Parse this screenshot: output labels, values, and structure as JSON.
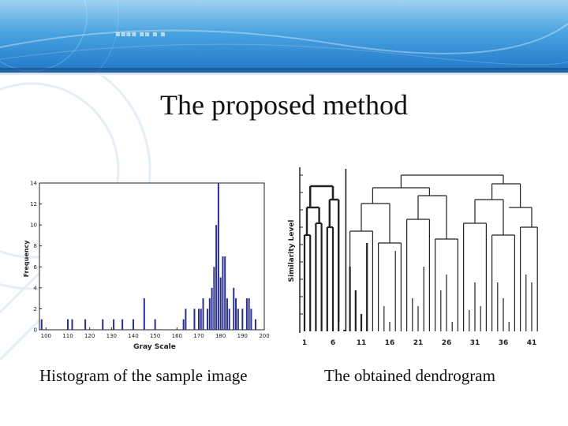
{
  "slide": {
    "title": "The proposed method",
    "caption_left": "Histogram of the sample image",
    "caption_right": "The obtained dendrogram",
    "banner_text": "▪▪▪▪ ▪▪ ▪ ▪"
  },
  "colors": {
    "banner_top": "#9ed2f0",
    "banner_bottom": "#1f78c8",
    "bar": "#2a2f8f"
  },
  "chart_data": [
    {
      "type": "bar",
      "xlabel": "Gray Scale",
      "ylabel": "Frequency",
      "xlim": [
        97,
        200
      ],
      "ylim": [
        0,
        14
      ],
      "xticks": [
        "100",
        "110",
        "120",
        "130",
        "140",
        "150",
        "160",
        "170",
        "180",
        "190",
        "200"
      ],
      "yticks": [
        "0",
        "2",
        "4",
        "6",
        "8",
        "10",
        "12",
        "14"
      ],
      "x": [
        98,
        110,
        112,
        118,
        126,
        131,
        135,
        140,
        145,
        150,
        163,
        164,
        168,
        170,
        171,
        172,
        174,
        175,
        176,
        177,
        178,
        179,
        180,
        181,
        182,
        183,
        184,
        186,
        187,
        188,
        190,
        192,
        193,
        194,
        196
      ],
      "values": [
        1,
        1,
        1,
        1,
        1,
        1,
        1,
        1,
        3,
        1,
        1,
        2,
        2,
        2,
        2,
        3,
        2,
        3,
        4,
        6,
        10,
        14,
        5,
        7,
        7,
        3,
        2,
        4,
        3,
        2,
        2,
        3,
        3,
        2,
        1
      ]
    },
    {
      "type": "dendrogram",
      "xlabel": "",
      "ylabel": "Similarity Level",
      "tick_labels": [
        "1",
        "6",
        "11",
        "16",
        "21",
        "26",
        "31",
        "36",
        "41"
      ]
    }
  ]
}
